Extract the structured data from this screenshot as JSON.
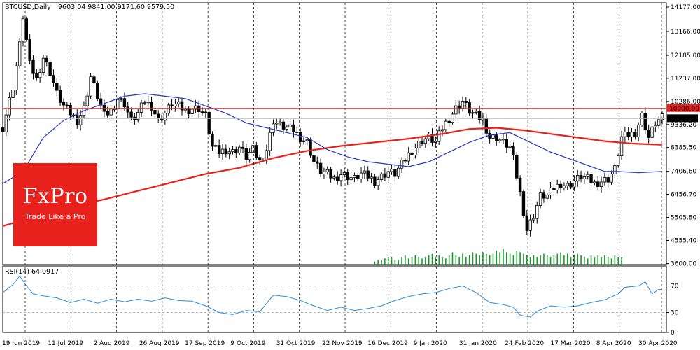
{
  "chart_data": [
    {
      "type": "candlestick",
      "title": "BTCUSD,Daily",
      "ohlc_label": "9603.04 9841.00 9171.60 9579.50",
      "y_ticks": [
        "14177.00",
        "13166.00",
        "12185.00",
        "11237.00",
        "10286.00",
        "9336.20",
        "8385.50",
        "7406.60",
        "6456.70",
        "5505.80",
        "4555.40",
        "3600.00"
      ],
      "y_tick_values": [
        14177,
        13166,
        12185,
        11237,
        10286,
        9336.2,
        8385.5,
        7406.6,
        6456.7,
        5505.8,
        4555.4,
        3600
      ],
      "ylim": [
        3560,
        14350
      ],
      "x_labels": [
        "19 Jun 2019",
        "11 Jul 2019",
        "2 Aug 2019",
        "26 Aug 2019",
        "17 Sep 2019",
        "9 Oct 2019",
        "31 Oct 2019",
        "22 Nov 2019",
        "16 Dec 2019",
        "9 Jan 2020",
        "31 Jan 2020",
        "24 Feb 2020",
        "17 Mar 2020",
        "8 Apr 2020",
        "30 Apr 2020"
      ],
      "current_price": "9579.50",
      "level_line": {
        "value": 10000,
        "label": "10000.00",
        "color": "#e8211d"
      },
      "colors": {
        "up_candle": "#ffffff",
        "down_candle": "#000000",
        "ma_fast": "#2a38c8",
        "ma_slow": "#e8211d",
        "volume": "#1a9a2a",
        "rsi": "#2a8fde",
        "grid": "#000000"
      },
      "price_path": [
        [
          0,
          9200
        ],
        [
          3,
          10900
        ],
        [
          5,
          12600
        ],
        [
          6,
          13800
        ],
        [
          8,
          11800
        ],
        [
          10,
          11200
        ],
        [
          12,
          12100
        ],
        [
          14,
          11500
        ],
        [
          16,
          10600
        ],
        [
          18,
          10100
        ],
        [
          20,
          9800
        ],
        [
          22,
          9500
        ],
        [
          24,
          10000
        ],
        [
          26,
          11300
        ],
        [
          28,
          10500
        ],
        [
          30,
          9700
        ],
        [
          32,
          9900
        ],
        [
          34,
          10400
        ],
        [
          36,
          10200
        ],
        [
          38,
          9500
        ],
        [
          40,
          9800
        ],
        [
          42,
          10300
        ],
        [
          44,
          10100
        ],
        [
          46,
          9500
        ],
        [
          48,
          9800
        ],
        [
          50,
          10200
        ],
        [
          52,
          10100
        ],
        [
          54,
          9900
        ],
        [
          56,
          10000
        ],
        [
          58,
          10000
        ],
        [
          60,
          9700
        ],
        [
          62,
          8400
        ],
        [
          64,
          8200
        ],
        [
          66,
          8300
        ],
        [
          68,
          8200
        ],
        [
          70,
          8400
        ],
        [
          72,
          8000
        ],
        [
          74,
          8300
        ],
        [
          76,
          7800
        ],
        [
          78,
          8300
        ],
        [
          80,
          9500
        ],
        [
          82,
          9300
        ],
        [
          84,
          9200
        ],
        [
          86,
          9100
        ],
        [
          88,
          8800
        ],
        [
          90,
          8600
        ],
        [
          92,
          7800
        ],
        [
          94,
          7400
        ],
        [
          96,
          7300
        ],
        [
          98,
          7100
        ],
        [
          100,
          7300
        ],
        [
          102,
          7200
        ],
        [
          104,
          7100
        ],
        [
          106,
          7300
        ],
        [
          108,
          7200
        ],
        [
          110,
          7000
        ],
        [
          112,
          7200
        ],
        [
          114,
          7400
        ],
        [
          116,
          7300
        ],
        [
          118,
          7700
        ],
        [
          120,
          8100
        ],
        [
          122,
          8400
        ],
        [
          124,
          8700
        ],
        [
          126,
          8800
        ],
        [
          128,
          8600
        ],
        [
          130,
          9200
        ],
        [
          132,
          9600
        ],
        [
          134,
          10000
        ],
        [
          136,
          10300
        ],
        [
          138,
          9900
        ],
        [
          140,
          9700
        ],
        [
          142,
          9500
        ],
        [
          144,
          8800
        ],
        [
          146,
          8800
        ],
        [
          148,
          8600
        ],
        [
          150,
          8400
        ],
        [
          151,
          7900
        ],
        [
          153,
          6500
        ],
        [
          155,
          5000
        ],
        [
          157,
          5600
        ],
        [
          159,
          6400
        ],
        [
          161,
          6400
        ],
        [
          163,
          6700
        ],
        [
          165,
          6900
        ],
        [
          167,
          6800
        ],
        [
          169,
          7000
        ],
        [
          171,
          7200
        ],
        [
          173,
          7100
        ],
        [
          175,
          6900
        ],
        [
          177,
          7000
        ],
        [
          179,
          7100
        ],
        [
          181,
          7500
        ],
        [
          183,
          8800
        ],
        [
          185,
          8900
        ],
        [
          187,
          9000
        ],
        [
          189,
          9700
        ],
        [
          191,
          8800
        ],
        [
          193,
          9400
        ],
        [
          195,
          9600
        ]
      ],
      "ma_fast_path": [
        [
          0,
          6900
        ],
        [
          6,
          7400
        ],
        [
          12,
          8800
        ],
        [
          18,
          9500
        ],
        [
          24,
          9900
        ],
        [
          30,
          10200
        ],
        [
          36,
          10500
        ],
        [
          42,
          10600
        ],
        [
          48,
          10500
        ],
        [
          54,
          10400
        ],
        [
          60,
          10100
        ],
        [
          66,
          9800
        ],
        [
          72,
          9400
        ],
        [
          78,
          9200
        ],
        [
          84,
          9000
        ],
        [
          90,
          8800
        ],
        [
          96,
          8300
        ],
        [
          102,
          8000
        ],
        [
          108,
          7800
        ],
        [
          114,
          7700
        ],
        [
          120,
          7600
        ],
        [
          126,
          7800
        ],
        [
          132,
          8200
        ],
        [
          138,
          8600
        ],
        [
          144,
          8900
        ],
        [
          150,
          9000
        ],
        [
          156,
          8600
        ],
        [
          162,
          8200
        ],
        [
          168,
          7900
        ],
        [
          174,
          7600
        ],
        [
          178,
          7400
        ],
        [
          182,
          7400
        ],
        [
          188,
          7350
        ],
        [
          195,
          7400
        ]
      ],
      "ma_slow_path": [
        [
          0,
          5150
        ],
        [
          10,
          5550
        ],
        [
          20,
          5950
        ],
        [
          30,
          6250
        ],
        [
          40,
          6600
        ],
        [
          50,
          6950
        ],
        [
          60,
          7300
        ],
        [
          70,
          7550
        ],
        [
          80,
          7950
        ],
        [
          90,
          8250
        ],
        [
          100,
          8450
        ],
        [
          110,
          8600
        ],
        [
          120,
          8750
        ],
        [
          130,
          8950
        ],
        [
          138,
          9150
        ],
        [
          146,
          9200
        ],
        [
          154,
          9100
        ],
        [
          162,
          8950
        ],
        [
          170,
          8800
        ],
        [
          178,
          8650
        ],
        [
          186,
          8550
        ],
        [
          195,
          8500
        ]
      ],
      "volume_profile": [
        0,
        0,
        0,
        0,
        0,
        0,
        0,
        0,
        0,
        0,
        0,
        0,
        0,
        0,
        0,
        0,
        0,
        0,
        0,
        0,
        0,
        0,
        0,
        0,
        0,
        0,
        0,
        0,
        0,
        0,
        0,
        0,
        0,
        0,
        0,
        0,
        0,
        0,
        0,
        0,
        0,
        0,
        0,
        0,
        0,
        0,
        0,
        0,
        0,
        0,
        0,
        0,
        0,
        0,
        0,
        0,
        0,
        0,
        0,
        0,
        0,
        0,
        0,
        0,
        0,
        0,
        0,
        0,
        0,
        0,
        0,
        0,
        0,
        0,
        0,
        0,
        0,
        0,
        0,
        0,
        0,
        0,
        0,
        0,
        0,
        0,
        0,
        0,
        0,
        0,
        0,
        0,
        0,
        0,
        0,
        0,
        0,
        0,
        0,
        0,
        0,
        0,
        0,
        0,
        0,
        0,
        0,
        0,
        0,
        0,
        0.2,
        0.3,
        0.3,
        0.4,
        0.5,
        0.5,
        0.3,
        0.3,
        0.5,
        0.6,
        0.4,
        0.5,
        0.6,
        0.5,
        0.4,
        0.5,
        0.6,
        0.7,
        0.5,
        0.6,
        0.5,
        0.4,
        0.6,
        0.8,
        0.6,
        0.5,
        0.7,
        0.5,
        0.6,
        0.8,
        0.7,
        0.6,
        0.8,
        0.7,
        0.6,
        0.7,
        0.9,
        0.8,
        1.0,
        0.8,
        0.7,
        0.6,
        0.9,
        0.8,
        0.7,
        0.6,
        0.5,
        0.6,
        0.5,
        0.6,
        0.7,
        0.6,
        0.5,
        0.6,
        0.7,
        0.8,
        0.6,
        0.7,
        0.5,
        0.6,
        0.7,
        0.6,
        0.5,
        0.4,
        0.6,
        0.5,
        0.6,
        0.5,
        0.6,
        0.5,
        0.4,
        0.6,
        0.5,
        0.5
      ]
    },
    {
      "type": "line",
      "title": "RSI(14) 64.0917",
      "y_ticks": [
        "70",
        "30",
        "0"
      ],
      "y_tick_values": [
        70,
        30,
        0
      ],
      "ylim": [
        0,
        100
      ],
      "rsi_path": [
        [
          0,
          60
        ],
        [
          3,
          72
        ],
        [
          5,
          85
        ],
        [
          7,
          70
        ],
        [
          9,
          58
        ],
        [
          12,
          55
        ],
        [
          16,
          52
        ],
        [
          20,
          45
        ],
        [
          24,
          50
        ],
        [
          28,
          44
        ],
        [
          32,
          50
        ],
        [
          36,
          46
        ],
        [
          40,
          50
        ],
        [
          44,
          47
        ],
        [
          48,
          52
        ],
        [
          52,
          48
        ],
        [
          56,
          47
        ],
        [
          60,
          40
        ],
        [
          64,
          30
        ],
        [
          68,
          27
        ],
        [
          72,
          33
        ],
        [
          76,
          31
        ],
        [
          80,
          56
        ],
        [
          84,
          54
        ],
        [
          88,
          48
        ],
        [
          92,
          40
        ],
        [
          96,
          33
        ],
        [
          100,
          38
        ],
        [
          104,
          33
        ],
        [
          108,
          36
        ],
        [
          112,
          40
        ],
        [
          116,
          48
        ],
        [
          120,
          54
        ],
        [
          124,
          58
        ],
        [
          128,
          60
        ],
        [
          132,
          66
        ],
        [
          136,
          70
        ],
        [
          140,
          60
        ],
        [
          144,
          45
        ],
        [
          148,
          42
        ],
        [
          151,
          38
        ],
        [
          153,
          26
        ],
        [
          156,
          23
        ],
        [
          158,
          32
        ],
        [
          162,
          40
        ],
        [
          166,
          38
        ],
        [
          170,
          40
        ],
        [
          174,
          45
        ],
        [
          178,
          49
        ],
        [
          182,
          58
        ],
        [
          184,
          68
        ],
        [
          188,
          70
        ],
        [
          190,
          76
        ],
        [
          192,
          58
        ],
        [
          194,
          65
        ],
        [
          195,
          64
        ]
      ]
    }
  ],
  "logo": {
    "brand": "FxPro",
    "tagline": "Trade Like a Pro"
  }
}
